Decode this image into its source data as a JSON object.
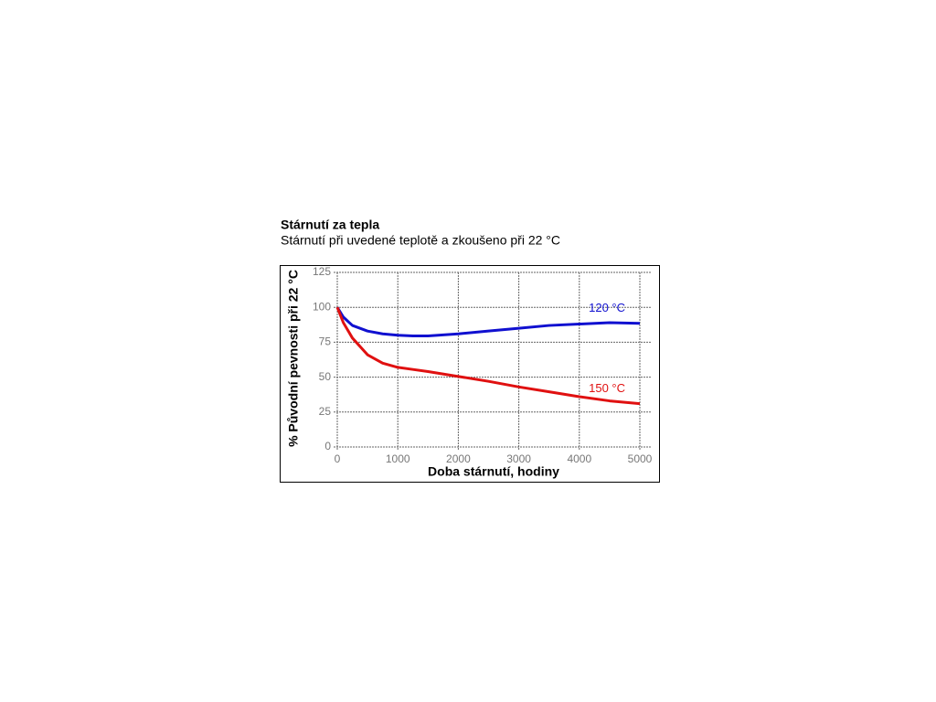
{
  "chart_data": {
    "type": "line",
    "title": "Stárnutí za tepla",
    "subtitle": "Stárnutí při uvedené teplotě a zkoušeno při 22 °C",
    "x_label": "Doba stárnutí, hodiny",
    "y_label": "% Původní pevnosti při 22 °C",
    "x": [
      0,
      100,
      250,
      500,
      750,
      1000,
      1250,
      1500,
      2000,
      2500,
      3000,
      3500,
      4000,
      4500,
      5000
    ],
    "series": [
      {
        "name": "120 °C",
        "color": "#1010d0",
        "values": [
          100,
          93,
          87,
          83,
          81,
          80,
          79.5,
          79.5,
          81,
          83,
          85,
          87,
          88,
          89,
          88.5
        ]
      },
      {
        "name": "150 °C",
        "color": "#e01010",
        "values": [
          100,
          89,
          78,
          66,
          60,
          57,
          55.5,
          54,
          50.5,
          47,
          43,
          39.5,
          36,
          33,
          31
        ]
      }
    ],
    "xlim": [
      0,
      5000
    ],
    "xticks": [
      0,
      1000,
      2000,
      3000,
      4000,
      5000
    ],
    "ylim": [
      0,
      125
    ],
    "yticks": [
      0,
      25,
      50,
      75,
      100,
      125
    ],
    "grid": true
  }
}
